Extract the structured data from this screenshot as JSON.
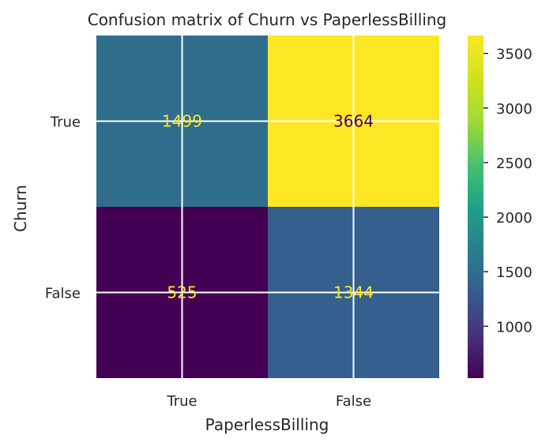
{
  "chart_data": {
    "type": "heatmap",
    "title": "Confusion matrix of Churn vs PaperlessBilling",
    "xlabel": "PaperlessBilling",
    "ylabel": "Churn",
    "x_categories": [
      "True",
      "False"
    ],
    "y_categories": [
      "True",
      "False"
    ],
    "values": [
      [
        1499,
        3664
      ],
      [
        525,
        1344
      ]
    ],
    "colormap": "viridis",
    "color_range": [
      525,
      3664
    ],
    "colorbar_ticks": [
      1000,
      1500,
      2000,
      2500,
      3000,
      3500
    ],
    "grid": true
  }
}
